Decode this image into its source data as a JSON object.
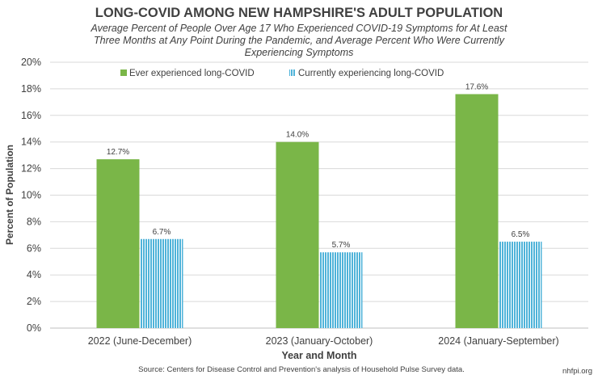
{
  "chart_data": {
    "type": "bar",
    "title": "LONG-COVID AMONG NEW HAMPSHIRE'S ADULT POPULATION",
    "subtitle_lines": [
      "Average Percent of People Over Age 17 Who Experienced COVID-19 Symptoms for At Least",
      "Three Months at Any Point During the Pandemic, and Average Percent Who Were Currently",
      "Experiencing Symptoms"
    ],
    "xlabel": "Year and Month",
    "ylabel": "Percent of Population",
    "categories": [
      "2022 (June-December)",
      "2023 (January-October)",
      "2024 (January-September)"
    ],
    "series": [
      {
        "name": "Ever experienced long-COVID",
        "values": [
          12.7,
          14.0,
          17.6
        ],
        "labels": [
          "12.7%",
          "14.0%",
          "17.6%"
        ],
        "color": "#7ab648",
        "pattern": "solid"
      },
      {
        "name": "Currently experiencing long-COVID",
        "values": [
          6.7,
          5.7,
          6.5
        ],
        "labels": [
          "6.7%",
          "5.7%",
          "6.5%"
        ],
        "color": "#4fb3d9",
        "pattern": "vertical-stripes"
      }
    ],
    "ylim": [
      0,
      20
    ],
    "yticks": [
      "0%",
      "2%",
      "4%",
      "6%",
      "8%",
      "10%",
      "12%",
      "14%",
      "16%",
      "18%",
      "20%"
    ],
    "grid": true,
    "legend_position": "top"
  },
  "source": "Source: Centers for Disease Control and Prevention's analysis of Household Pulse Survey data.",
  "credit": "nhfpi.org",
  "colors": {
    "title": "#404040",
    "text": "#404040",
    "grid": "#d9d9d9"
  }
}
